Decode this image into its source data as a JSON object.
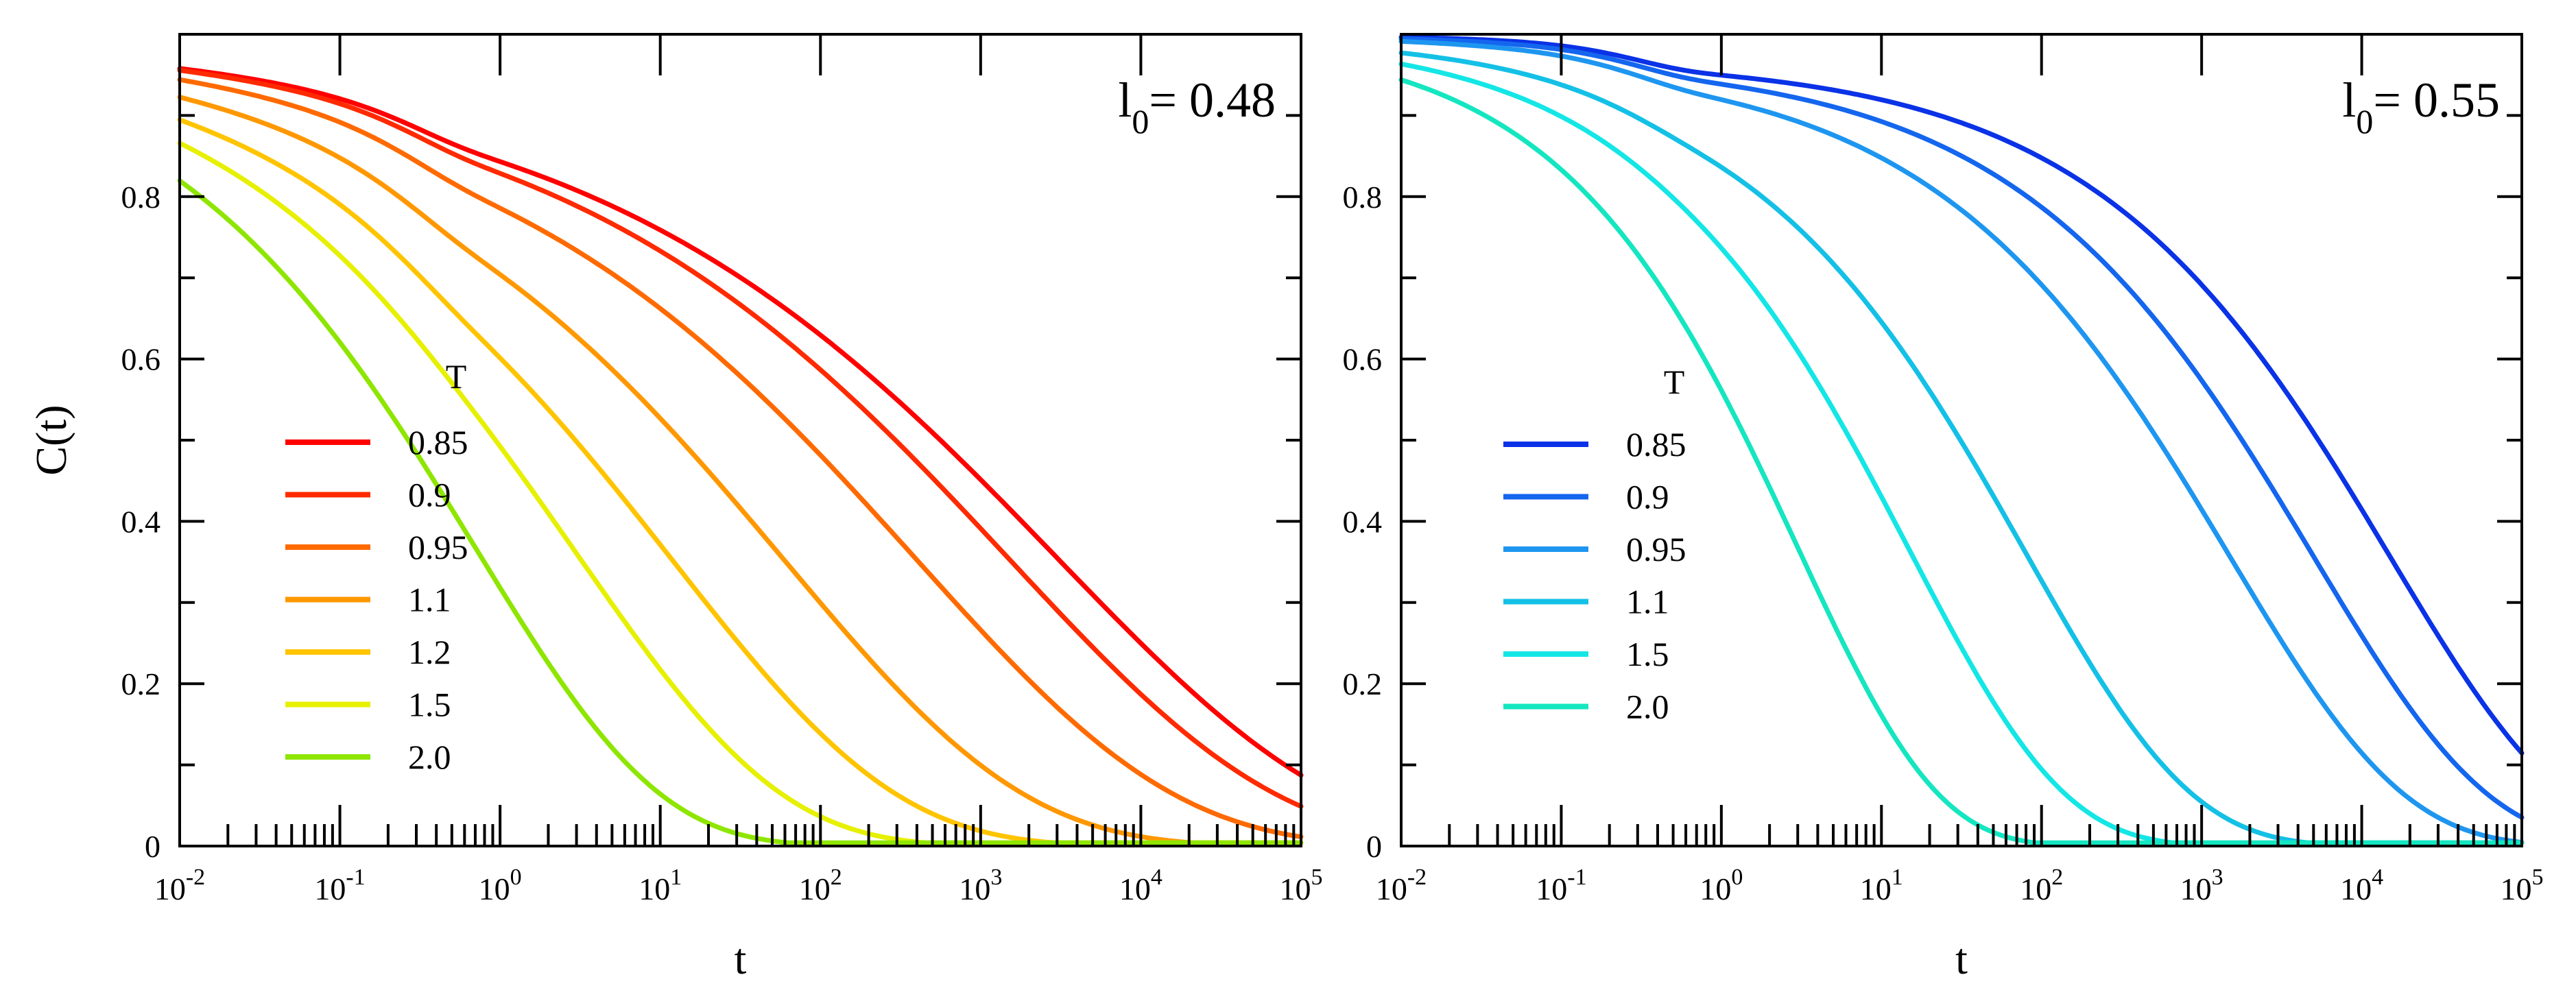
{
  "chart_data": [
    {
      "type": "line",
      "xscale": "log",
      "xlim": [
        0.01,
        100000
      ],
      "ylim": [
        0,
        1
      ],
      "xlabel": "t",
      "ylabel": "C(t)",
      "annotation": {
        "base": "l",
        "sub": "0",
        "rest": "= 0.48"
      },
      "legend_title": "T",
      "x_tick_labels": [
        {
          "base": "10",
          "exp": "-2"
        },
        {
          "base": "10",
          "exp": "-1"
        },
        {
          "base": "10",
          "exp": "0"
        },
        {
          "base": "10",
          "exp": "1"
        },
        {
          "base": "10",
          "exp": "2"
        },
        {
          "base": "10",
          "exp": "3"
        },
        {
          "base": "10",
          "exp": "4"
        },
        {
          "base": "10",
          "exp": "5"
        }
      ],
      "y_tick_labels": [
        "0",
        "0.2",
        "0.4",
        "0.6",
        "0.8"
      ],
      "series": [
        {
          "name": "0.85",
          "color": "#ff0000",
          "tau": 3000,
          "beta": 0.25,
          "f": 0.965
        },
        {
          "name": "0.9",
          "color": "#ff2a00",
          "tau": 1500,
          "beta": 0.26,
          "f": 0.962
        },
        {
          "name": "0.95",
          "color": "#ff6a00",
          "tau": 400,
          "beta": 0.27,
          "f": 0.958
        },
        {
          "name": "1.1",
          "color": "#ff9800",
          "tau": 60,
          "beta": 0.29,
          "f": 0.955
        },
        {
          "name": "1.2",
          "color": "#ffc400",
          "tau": 12,
          "beta": 0.31,
          "f": 0.955
        },
        {
          "name": "1.5",
          "color": "#e6f000",
          "tau": 3,
          "beta": 0.34,
          "f": 0.98
        },
        {
          "name": "2.0",
          "color": "#8ee600",
          "tau": 0.7,
          "beta": 0.38,
          "f": 1.0
        }
      ]
    },
    {
      "type": "line",
      "xscale": "log",
      "xlim": [
        0.01,
        100000
      ],
      "ylim": [
        0,
        1
      ],
      "xlabel": "t",
      "ylabel": "",
      "annotation": {
        "base": "l",
        "sub": "0",
        "rest": "= 0.55"
      },
      "legend_title": "T",
      "x_tick_labels": [
        {
          "base": "10",
          "exp": "-2"
        },
        {
          "base": "10",
          "exp": "-1"
        },
        {
          "base": "10",
          "exp": "0"
        },
        {
          "base": "10",
          "exp": "1"
        },
        {
          "base": "10",
          "exp": "2"
        },
        {
          "base": "10",
          "exp": "3"
        },
        {
          "base": "10",
          "exp": "4"
        },
        {
          "base": "10",
          "exp": "5"
        }
      ],
      "y_tick_labels": [
        "0",
        "0.2",
        "0.4",
        "0.6",
        "0.8"
      ],
      "series": [
        {
          "name": "0.85",
          "color": "#0a32e6",
          "tau": 15000,
          "beta": 0.4,
          "f": 0.97
        },
        {
          "name": "0.9",
          "color": "#1466ee",
          "tau": 5000,
          "beta": 0.4,
          "f": 0.97
        },
        {
          "name": "0.95",
          "color": "#1e96f0",
          "tau": 1500,
          "beta": 0.4,
          "f": 0.97
        },
        {
          "name": "1.1",
          "color": "#14c0e6",
          "tau": 80,
          "beta": 0.42,
          "f": 0.98
        },
        {
          "name": "1.5",
          "color": "#14e6e6",
          "tau": 15,
          "beta": 0.45,
          "f": 0.99
        },
        {
          "name": "2.0",
          "color": "#14e6c0",
          "tau": 3,
          "beta": 0.5,
          "f": 1.0
        }
      ]
    }
  ]
}
